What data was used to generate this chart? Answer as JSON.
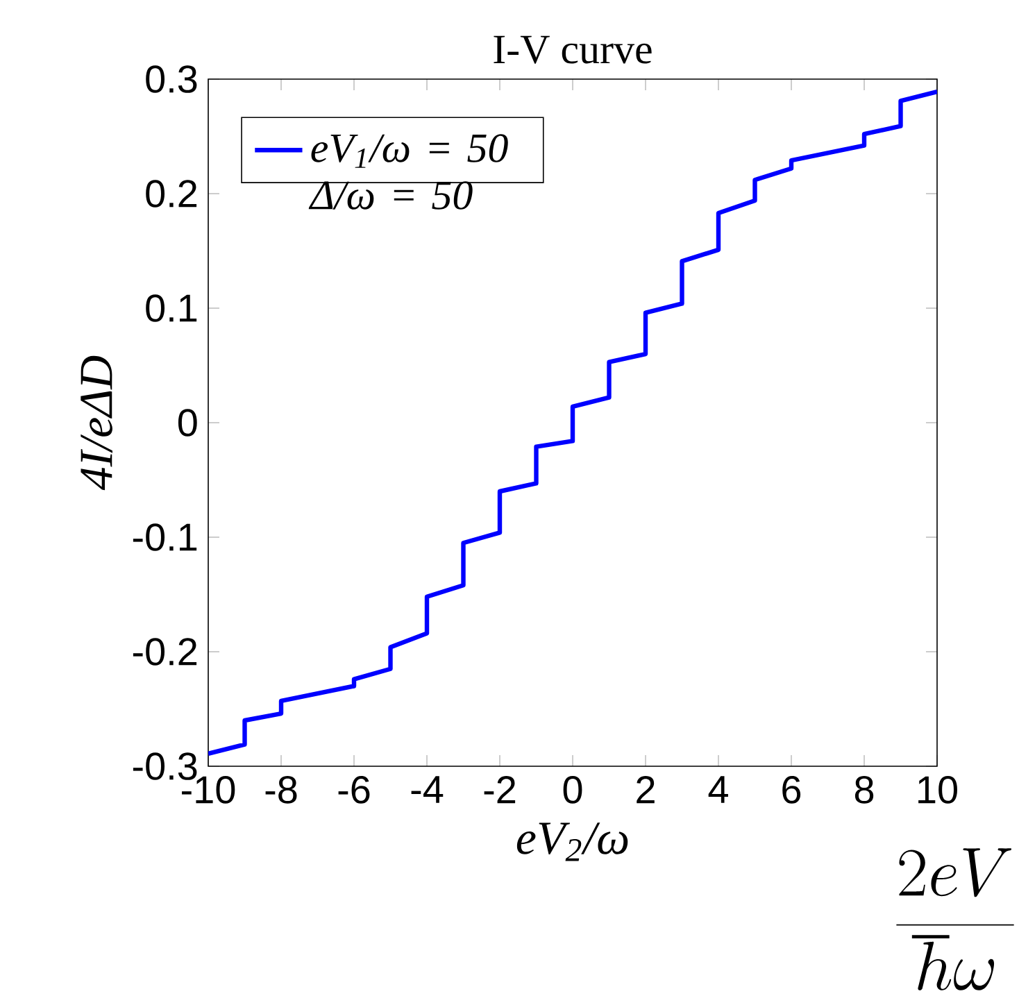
{
  "chart_data": {
    "type": "line",
    "title": "I-V curve",
    "xlabel": "eV$_{2}$/ω",
    "ylabel": "4I/eΔD",
    "annotations": [
      "\\frac{2eV}{\\hbar\\omega}"
    ],
    "series": [
      {
        "name": "eV$_{1}$/ω = 50 Δ/ω = 50",
        "color": "#0000ff",
        "x": [
          -10,
          -9,
          -9,
          -8,
          -8,
          -6,
          -6,
          -5,
          -5,
          -4,
          -4,
          -3,
          -3,
          -2,
          -2,
          -1,
          -1,
          0,
          0,
          1,
          1,
          2,
          2,
          3,
          3,
          4,
          4,
          5,
          5,
          6,
          6,
          8,
          8,
          9,
          9,
          10
        ],
        "values": [
          -0.289,
          -0.281,
          -0.26,
          -0.254,
          -0.243,
          -0.23,
          -0.224,
          -0.215,
          -0.196,
          -0.184,
          -0.152,
          -0.142,
          -0.105,
          -0.096,
          -0.06,
          -0.053,
          -0.021,
          -0.016,
          0.014,
          0.022,
          0.053,
          0.06,
          0.096,
          0.104,
          0.141,
          0.151,
          0.183,
          0.194,
          0.212,
          0.222,
          0.229,
          0.242,
          0.252,
          0.259,
          0.281,
          0.289
        ]
      }
    ],
    "xlim": [
      -10,
      10
    ],
    "ylim": [
      -0.3,
      0.3
    ],
    "xticks": [
      -10,
      -8,
      -6,
      -4,
      -2,
      0,
      2,
      4,
      6,
      8,
      10
    ],
    "yticks": [
      -0.3,
      -0.2,
      -0.1,
      0,
      0.1,
      0.2,
      0.3
    ],
    "grid": false,
    "legend": "top left",
    "marker": "none",
    "line_style": "solid"
  }
}
